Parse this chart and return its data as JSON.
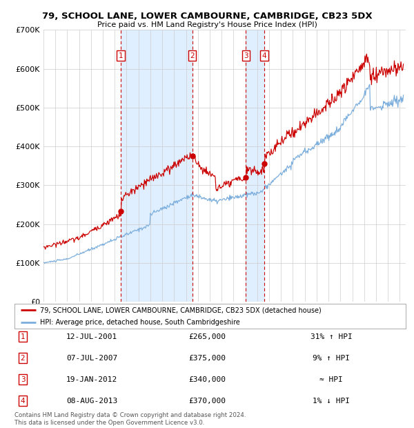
{
  "title": "79, SCHOOL LANE, LOWER CAMBOURNE, CAMBRIDGE, CB23 5DX",
  "subtitle": "Price paid vs. HM Land Registry's House Price Index (HPI)",
  "ylim": [
    0,
    700000
  ],
  "yticks": [
    0,
    100000,
    200000,
    300000,
    400000,
    500000,
    600000,
    700000
  ],
  "ytick_labels": [
    "£0",
    "£100K",
    "£200K",
    "£300K",
    "£400K",
    "£500K",
    "£600K",
    "£700K"
  ],
  "xlim_start": 1995.0,
  "xlim_end": 2025.5,
  "transactions": [
    {
      "num": 1,
      "date": "12-JUL-2001",
      "price": 265000,
      "rel": "31% ↑ HPI",
      "year": 2001.53
    },
    {
      "num": 2,
      "date": "07-JUL-2007",
      "price": 375000,
      "rel": "9% ↑ HPI",
      "year": 2007.52
    },
    {
      "num": 3,
      "date": "19-JAN-2012",
      "price": 340000,
      "rel": "≈ HPI",
      "year": 2012.05
    },
    {
      "num": 4,
      "date": "08-AUG-2013",
      "price": 370000,
      "rel": "1% ↓ HPI",
      "year": 2013.6
    }
  ],
  "legend_line1": "79, SCHOOL LANE, LOWER CAMBOURNE, CAMBRIDGE, CB23 5DX (detached house)",
  "legend_line2": "HPI: Average price, detached house, South Cambridgeshire",
  "footnote": "Contains HM Land Registry data © Crown copyright and database right 2024.\nThis data is licensed under the Open Government Licence v3.0.",
  "red_color": "#cc0000",
  "blue_color": "#7aaddc",
  "shade_color": "#ddeeff",
  "grid_color": "#cccccc",
  "background_color": "#ffffff"
}
